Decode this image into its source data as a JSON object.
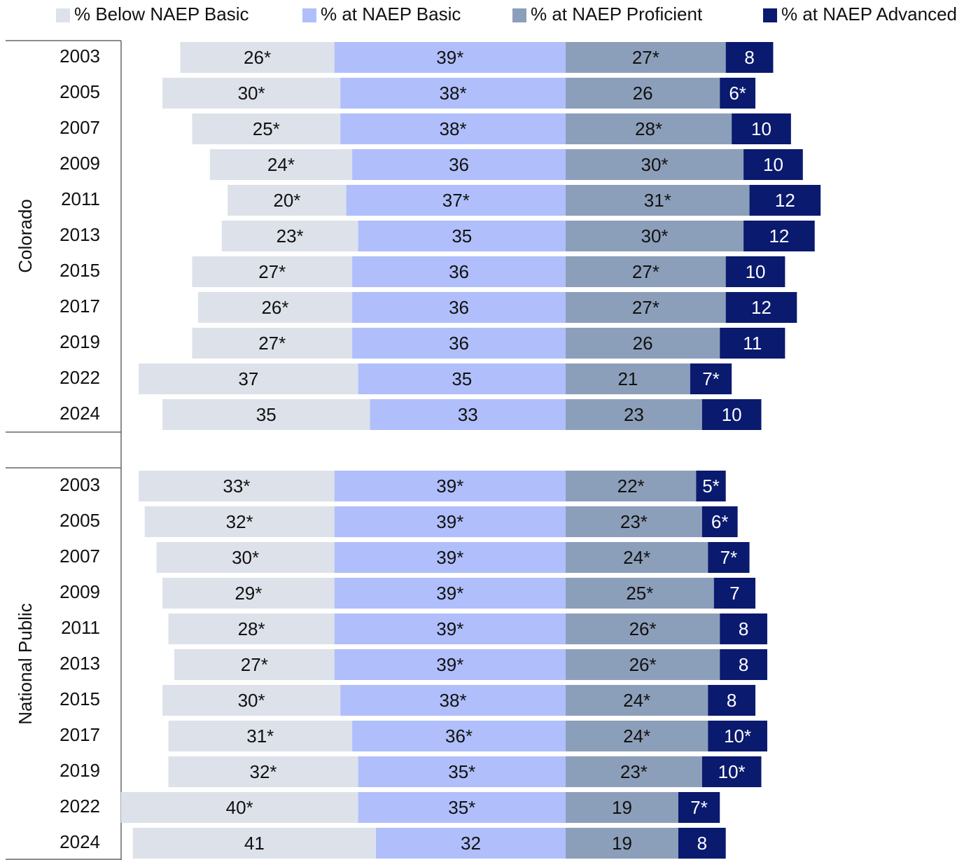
{
  "chart_data": [
    {
      "type": "bar",
      "group": "Colorado",
      "categories": [
        "2003",
        "2005",
        "2007",
        "2009",
        "2011",
        "2013",
        "2015",
        "2017",
        "2019",
        "2022",
        "2024"
      ],
      "series": [
        {
          "name": "% Below NAEP Basic",
          "color": "#dde2ea",
          "values": [
            26,
            30,
            25,
            24,
            20,
            23,
            27,
            26,
            27,
            37,
            35
          ],
          "value_labels": [
            "26*",
            "30*",
            "25*",
            "24*",
            "20*",
            "23*",
            "27*",
            "26*",
            "27*",
            "37",
            "35"
          ]
        },
        {
          "name": "% at NAEP Basic",
          "color": "#b0bffb",
          "values": [
            39,
            38,
            38,
            36,
            37,
            35,
            36,
            36,
            36,
            35,
            33
          ],
          "value_labels": [
            "39*",
            "38*",
            "38*",
            "36",
            "37*",
            "35",
            "36",
            "36",
            "36",
            "35",
            "33"
          ]
        },
        {
          "name": "% at NAEP Proficient",
          "color": "#8c9fba",
          "values": [
            27,
            26,
            28,
            30,
            31,
            30,
            27,
            27,
            26,
            21,
            23
          ],
          "value_labels": [
            "27*",
            "26",
            "28*",
            "30*",
            "31*",
            "30*",
            "27*",
            "27*",
            "26",
            "21",
            "23"
          ]
        },
        {
          "name": "% at NAEP Advanced",
          "color": "#0a1a6e",
          "values": [
            8,
            6,
            10,
            10,
            12,
            12,
            10,
            12,
            11,
            7,
            10
          ],
          "value_labels": [
            "8",
            "6*",
            "10",
            "10",
            "12",
            "12",
            "10",
            "12",
            "11",
            "7*",
            "10"
          ]
        }
      ]
    },
    {
      "type": "bar",
      "group": "National Public",
      "categories": [
        "2003",
        "2005",
        "2007",
        "2009",
        "2011",
        "2013",
        "2015",
        "2017",
        "2019",
        "2022",
        "2024"
      ],
      "series": [
        {
          "color": "#dde2ea",
          "values": [
            33,
            32,
            30,
            29,
            28,
            27,
            30,
            31,
            32,
            40,
            41
          ],
          "value_labels": [
            "33*",
            "32*",
            "30*",
            "29*",
            "28*",
            "27*",
            "30*",
            "31*",
            "32*",
            "40*",
            "41"
          ]
        },
        {
          "color": "#b0bffb",
          "values": [
            39,
            39,
            39,
            39,
            39,
            39,
            38,
            36,
            35,
            35,
            32
          ],
          "value_labels": [
            "39*",
            "39*",
            "39*",
            "39*",
            "39*",
            "39*",
            "38*",
            "36*",
            "35*",
            "35*",
            "32"
          ]
        },
        {
          "color": "#8c9fba",
          "values": [
            22,
            23,
            24,
            25,
            26,
            26,
            24,
            24,
            23,
            19,
            19
          ],
          "value_labels": [
            "22*",
            "23*",
            "24*",
            "25*",
            "26*",
            "26*",
            "24*",
            "24*",
            "23*",
            "19",
            "19"
          ]
        },
        {
          "color": "#0a1a6e",
          "values": [
            5,
            6,
            7,
            7,
            8,
            8,
            8,
            10,
            10,
            7,
            8
          ],
          "value_labels": [
            "5*",
            "6*",
            "7*",
            "7",
            "8",
            "8",
            "8",
            "10*",
            "10*",
            "7*",
            "8"
          ]
        }
      ]
    }
  ]
}
